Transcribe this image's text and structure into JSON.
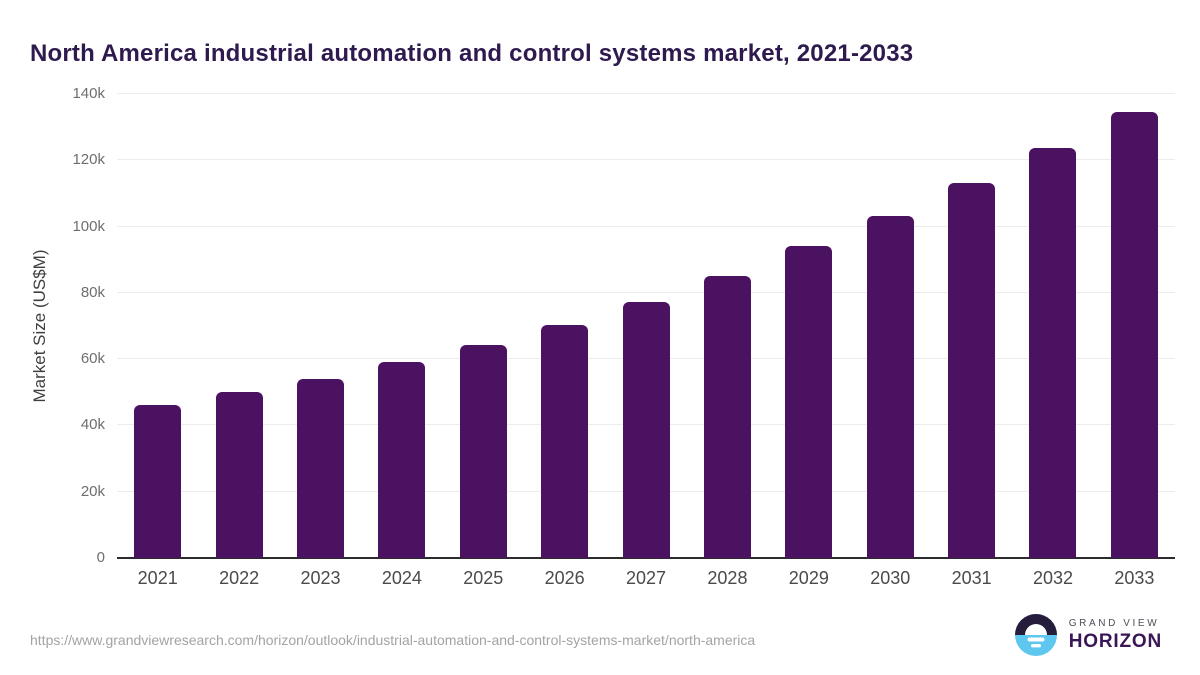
{
  "page": {
    "title": "North America industrial automation and control systems market, 2021-2033"
  },
  "chart_data": {
    "type": "bar",
    "title": "North America industrial automation and control systems market, 2021-2033",
    "xlabel": "",
    "ylabel": "Market Size (US$M)",
    "categories": [
      "2021",
      "2022",
      "2023",
      "2024",
      "2025",
      "2026",
      "2027",
      "2028",
      "2029",
      "2030",
      "2031",
      "2032",
      "2033"
    ],
    "values": [
      46300,
      50000,
      54100,
      59000,
      64300,
      70400,
      77300,
      85100,
      94000,
      103300,
      113100,
      123700,
      134500
    ],
    "ylim": [
      0,
      140000
    ],
    "yticks": [
      {
        "label": "0",
        "value": 0
      },
      {
        "label": "20k",
        "value": 20000
      },
      {
        "label": "40k",
        "value": 40000
      },
      {
        "label": "60k",
        "value": 60000
      },
      {
        "label": "80k",
        "value": 80000
      },
      {
        "label": "100k",
        "value": 100000
      },
      {
        "label": "120k",
        "value": 120000
      },
      {
        "label": "140k",
        "value": 140000
      }
    ],
    "grid": true,
    "legend": false,
    "bar_color": "#4a1261"
  },
  "footer": {
    "source_url": "https://www.grandviewresearch.com/horizon/outlook/industrial-automation-and-control-systems-market/north-america",
    "logo_line1": "GRAND VIEW",
    "logo_line2": "HORIZON"
  },
  "colors": {
    "title": "#2e1a4e",
    "bar": "#4a1261",
    "axis_line": "#2b2b2b",
    "gridline": "#ececec",
    "tick_label": "#6e6e6e",
    "x_label": "#4a4a4a",
    "url_text": "#a3a3a3",
    "logo_dark": "#251d3b",
    "logo_blue": "#5ec7ef",
    "logo_purple": "#3a1656"
  }
}
